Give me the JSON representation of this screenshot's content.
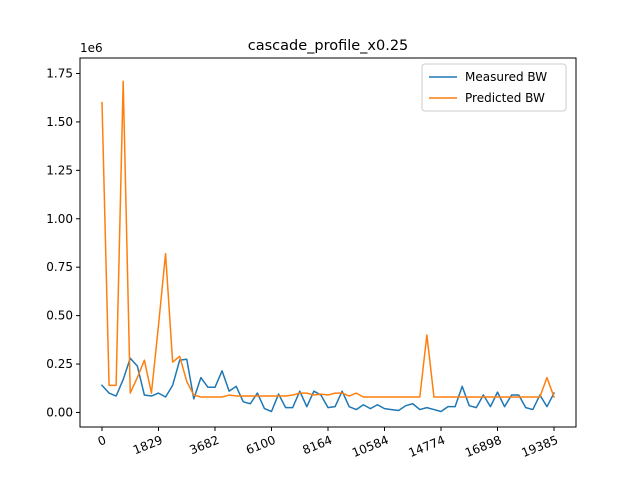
{
  "chart_data": {
    "type": "line",
    "title": "cascade_profile_x0.25",
    "y_offset_label": "1e6",
    "xlabel": "",
    "ylabel": "",
    "x_ticks": [
      0,
      1829,
      3682,
      6100,
      8164,
      10584,
      14774,
      16898,
      19385
    ],
    "y_ticks": [
      0.0,
      0.25,
      0.5,
      0.75,
      1.0,
      1.25,
      1.5,
      1.75
    ],
    "y_tick_labels": [
      "0.00",
      "0.25",
      "0.50",
      "0.75",
      "1.00",
      "1.25",
      "1.50",
      "1.75"
    ],
    "ylim": [
      -0.075,
      1.83
    ],
    "y_scale": 1000000,
    "legend_position": "upper right",
    "series": [
      {
        "name": "Measured BW",
        "color": "#1f77b4",
        "points": [
          [
            0,
            0.14
          ],
          [
            1,
            0.1
          ],
          [
            2,
            0.085
          ],
          [
            3,
            0.17
          ],
          [
            4,
            0.28
          ],
          [
            5,
            0.24
          ],
          [
            6,
            0.09
          ],
          [
            7,
            0.085
          ],
          [
            8,
            0.1
          ],
          [
            9,
            0.08
          ],
          [
            10,
            0.14
          ],
          [
            11,
            0.27
          ],
          [
            12,
            0.275
          ],
          [
            13,
            0.07
          ],
          [
            14,
            0.18
          ],
          [
            15,
            0.13
          ],
          [
            16,
            0.13
          ],
          [
            17,
            0.215
          ],
          [
            18,
            0.11
          ],
          [
            19,
            0.135
          ],
          [
            20,
            0.055
          ],
          [
            21,
            0.045
          ],
          [
            22,
            0.1
          ],
          [
            23,
            0.02
          ],
          [
            24,
            0.005
          ],
          [
            25,
            0.095
          ],
          [
            26,
            0.025
          ],
          [
            27,
            0.025
          ],
          [
            28,
            0.11
          ],
          [
            29,
            0.03
          ],
          [
            30,
            0.11
          ],
          [
            31,
            0.09
          ],
          [
            32,
            0.025
          ],
          [
            33,
            0.03
          ],
          [
            34,
            0.11
          ],
          [
            35,
            0.03
          ],
          [
            36,
            0.015
          ],
          [
            37,
            0.04
          ],
          [
            38,
            0.02
          ],
          [
            39,
            0.04
          ],
          [
            40,
            0.02
          ],
          [
            41,
            0.015
          ],
          [
            42,
            0.01
          ],
          [
            43,
            0.035
          ],
          [
            44,
            0.045
          ],
          [
            45,
            0.015
          ],
          [
            46,
            0.025
          ],
          [
            47,
            0.015
          ],
          [
            48,
            0.005
          ],
          [
            49,
            0.03
          ],
          [
            50,
            0.03
          ],
          [
            51,
            0.135
          ],
          [
            52,
            0.035
          ],
          [
            53,
            0.025
          ],
          [
            54,
            0.09
          ],
          [
            55,
            0.03
          ],
          [
            56,
            0.105
          ],
          [
            57,
            0.03
          ],
          [
            58,
            0.09
          ],
          [
            59,
            0.09
          ],
          [
            60,
            0.025
          ],
          [
            61,
            0.015
          ],
          [
            62,
            0.09
          ],
          [
            63,
            0.03
          ],
          [
            64,
            0.1
          ]
        ]
      },
      {
        "name": "Predicted BW",
        "color": "#ff7f0e",
        "points": [
          [
            0,
            1.6
          ],
          [
            1,
            0.14
          ],
          [
            2,
            0.14
          ],
          [
            3,
            1.71
          ],
          [
            4,
            0.1
          ],
          [
            5,
            0.18
          ],
          [
            6,
            0.27
          ],
          [
            7,
            0.1
          ],
          [
            8,
            0.45
          ],
          [
            9,
            0.82
          ],
          [
            10,
            0.26
          ],
          [
            11,
            0.29
          ],
          [
            12,
            0.16
          ],
          [
            13,
            0.09
          ],
          [
            14,
            0.08
          ],
          [
            15,
            0.08
          ],
          [
            16,
            0.08
          ],
          [
            17,
            0.08
          ],
          [
            18,
            0.09
          ],
          [
            19,
            0.085
          ],
          [
            20,
            0.085
          ],
          [
            21,
            0.085
          ],
          [
            22,
            0.085
          ],
          [
            23,
            0.085
          ],
          [
            24,
            0.085
          ],
          [
            25,
            0.085
          ],
          [
            26,
            0.085
          ],
          [
            27,
            0.09
          ],
          [
            28,
            0.1
          ],
          [
            29,
            0.1
          ],
          [
            30,
            0.09
          ],
          [
            31,
            0.095
          ],
          [
            32,
            0.09
          ],
          [
            33,
            0.1
          ],
          [
            34,
            0.1
          ],
          [
            35,
            0.085
          ],
          [
            36,
            0.1
          ],
          [
            37,
            0.08
          ],
          [
            38,
            0.08
          ],
          [
            39,
            0.08
          ],
          [
            40,
            0.08
          ],
          [
            41,
            0.08
          ],
          [
            42,
            0.08
          ],
          [
            43,
            0.08
          ],
          [
            44,
            0.08
          ],
          [
            45,
            0.08
          ],
          [
            46,
            0.4
          ],
          [
            47,
            0.08
          ],
          [
            48,
            0.08
          ],
          [
            49,
            0.08
          ],
          [
            50,
            0.08
          ],
          [
            51,
            0.08
          ],
          [
            52,
            0.08
          ],
          [
            53,
            0.08
          ],
          [
            54,
            0.08
          ],
          [
            55,
            0.08
          ],
          [
            56,
            0.08
          ],
          [
            57,
            0.08
          ],
          [
            58,
            0.08
          ],
          [
            59,
            0.08
          ],
          [
            60,
            0.08
          ],
          [
            61,
            0.08
          ],
          [
            62,
            0.08
          ],
          [
            63,
            0.18
          ],
          [
            64,
            0.08
          ]
        ]
      }
    ]
  }
}
